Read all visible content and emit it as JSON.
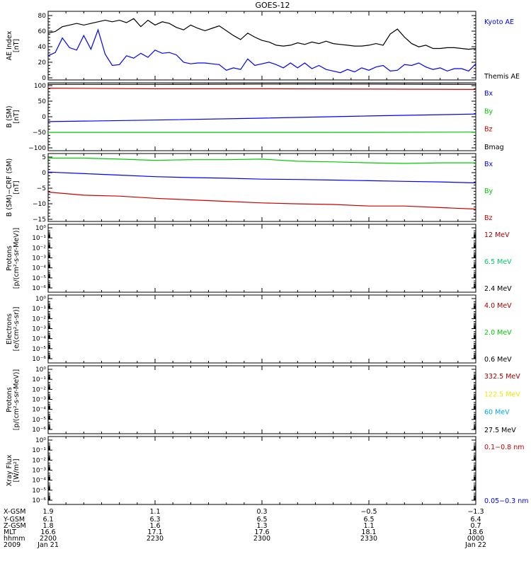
{
  "title": "GOES-12",
  "colors": {
    "black": "#000000",
    "blue": "#0000ff",
    "green": "#00cc00",
    "red": "#cc0000",
    "yellow": "#e8e800",
    "cyan": "#00aaee",
    "darkred": "#aa0000"
  },
  "panels": [
    {
      "id": "ae",
      "ylabel": [
        "AE Index",
        "[nT]"
      ],
      "ticks": [
        "80",
        "60",
        "40",
        "20",
        "0"
      ],
      "legend": [
        {
          "text": "Kyoto AE",
          "color": "#0000ff"
        },
        {
          "text": "Themis AE",
          "color": "#000000"
        }
      ]
    },
    {
      "id": "b",
      "ylabel": [
        "B (SM)",
        "[nT]"
      ],
      "ticks": [
        "100",
        "50",
        "0",
        "−50",
        "−100"
      ],
      "legend": [
        {
          "text": "Bx",
          "color": "#0000ff"
        },
        {
          "text": "By",
          "color": "#00cc00"
        },
        {
          "text": "Bz",
          "color": "#cc0000"
        },
        {
          "text": "Bmag",
          "color": "#000000"
        }
      ]
    },
    {
      "id": "bd",
      "ylabel": [
        "B (SM)−CRF (SM)",
        "[nT]"
      ],
      "ticks": [
        "5",
        "0",
        "−5",
        "−10",
        "−15"
      ],
      "legend": [
        {
          "text": "Bx",
          "color": "#0000ff"
        },
        {
          "text": "By",
          "color": "#00cc00"
        },
        {
          "text": "Bz",
          "color": "#cc0000"
        }
      ]
    },
    {
      "id": "p1",
      "ylabel": [
        "Protons",
        "[p/(cm²-s-sr-MeV)]"
      ],
      "ticks": [
        "10⁰",
        "10⁻¹",
        "10⁻²",
        "10⁻³",
        "10⁻⁴",
        "10⁻⁵",
        "10⁻⁶"
      ],
      "legend": [
        {
          "text": "12 MeV",
          "color": "#aa0000"
        },
        {
          "text": "6.5 MeV",
          "color": "#00cc66"
        },
        {
          "text": "2.4 MeV",
          "color": "#000000"
        }
      ]
    },
    {
      "id": "e1",
      "ylabel": [
        "Electrons",
        "[e/(cm²-s-sr)]"
      ],
      "ticks": [
        "10⁰",
        "10⁻¹",
        "10⁻²",
        "10⁻³",
        "10⁻⁴",
        "10⁻⁵",
        "10⁻⁶"
      ],
      "legend": [
        {
          "text": "4.0 MeV",
          "color": "#aa0000"
        },
        {
          "text": "2.0 MeV",
          "color": "#00cc00"
        },
        {
          "text": "0.6 MeV",
          "color": "#000000"
        }
      ]
    },
    {
      "id": "p2",
      "ylabel": [
        "Protons",
        "[p/(cm²-s-sr-MeV)]"
      ],
      "ticks": [
        "10⁰",
        "10⁻¹",
        "10⁻²",
        "10⁻³",
        "10⁻⁴",
        "10⁻⁵",
        "10⁻⁶"
      ],
      "legend": [
        {
          "text": "332.5 MeV",
          "color": "#aa0000"
        },
        {
          "text": "122.5 MeV",
          "color": "#e8e800"
        },
        {
          "text": "60 MeV",
          "color": "#00aaee"
        },
        {
          "text": "27.5 MeV",
          "color": "#000000"
        }
      ]
    },
    {
      "id": "x1",
      "ylabel": [
        "Xray Flux",
        "[W/m²]"
      ],
      "ticks": [
        "10⁰",
        "10⁻¹",
        "10⁻²",
        "10⁻³",
        "10⁻⁴",
        "10⁻⁵",
        "10⁻⁶"
      ],
      "legend": [
        {
          "text": "0.1−0.8 nm",
          "color": "#cc0000"
        },
        {
          "text": "0.05−0.3 nm",
          "color": "#0000ff"
        }
      ]
    }
  ],
  "footer": {
    "labels": [
      "X-GSM",
      "Y-GSM",
      "Z-GSM",
      "MLT",
      "hhmm",
      "2009"
    ],
    "columns": [
      [
        "1.9",
        "6.1",
        "1.8",
        "16.6",
        "2200",
        "Jan 21"
      ],
      [
        "1.1",
        "6.3",
        "1.6",
        "17.1",
        "2230",
        ""
      ],
      [
        "0.3",
        "6.5",
        "1.3",
        "17.6",
        "2300",
        ""
      ],
      [
        "−0.5",
        "6.5",
        "1.1",
        "18.1",
        "2330",
        ""
      ],
      [
        "−1.3",
        "6.4",
        "0.7",
        "18.6",
        "0000",
        "Jan 22"
      ]
    ]
  },
  "chart_data": [
    {
      "type": "line",
      "title": "GOES-12",
      "ylabel": "AE Index [nT]",
      "ylim": [
        0,
        85
      ],
      "x": [
        0,
        2,
        4,
        6,
        8,
        10,
        12,
        14,
        16,
        18,
        20,
        22,
        24,
        26,
        28,
        30,
        32,
        34,
        36,
        38,
        40,
        42,
        44,
        46,
        48,
        50,
        52,
        54,
        56,
        58,
        60,
        62,
        64,
        66,
        68,
        70,
        72,
        74,
        76,
        78,
        80,
        82,
        84,
        86,
        88,
        90,
        92,
        94,
        96,
        98,
        100,
        102,
        104,
        106,
        108,
        110,
        112,
        114,
        116,
        118,
        120
      ],
      "series": [
        {
          "name": "Themis AE",
          "color": "#000000",
          "values": [
            58,
            60,
            66,
            68,
            70,
            68,
            70,
            72,
            74,
            72,
            74,
            71,
            76,
            66,
            74,
            68,
            72,
            70,
            65,
            62,
            68,
            64,
            61,
            64,
            67,
            61,
            55,
            50,
            58,
            53,
            49,
            47,
            43,
            42,
            43,
            46,
            44,
            47,
            45,
            48,
            45,
            44,
            43,
            42,
            42,
            43,
            45,
            43,
            57,
            63,
            53,
            45,
            41,
            43,
            39,
            39,
            40,
            40,
            39,
            38,
            39
          ]
        },
        {
          "name": "Kyoto AE",
          "color": "#0000ff",
          "values": [
            30,
            34,
            52,
            40,
            37,
            55,
            38,
            62,
            32,
            18,
            19,
            30,
            27,
            33,
            28,
            37,
            33,
            34,
            31,
            22,
            20,
            21,
            21,
            20,
            19,
            12,
            15,
            13,
            26,
            18,
            20,
            22,
            19,
            15,
            21,
            15,
            21,
            14,
            18,
            13,
            11,
            9,
            13,
            10,
            15,
            12,
            16,
            18,
            11,
            12,
            19,
            18,
            21,
            16,
            13,
            15,
            11,
            14,
            14,
            11,
            20
          ]
        }
      ]
    },
    {
      "type": "line",
      "ylabel": "B (SM) [nT]",
      "ylim": [
        -110,
        105
      ],
      "x": [
        0,
        30,
        60,
        90,
        120
      ],
      "series": [
        {
          "name": "Bx",
          "color": "#0000ff",
          "values": [
            -18,
            -13,
            -7,
            0,
            6
          ]
        },
        {
          "name": "By",
          "color": "#00cc00",
          "values": [
            -52,
            -52,
            -52,
            -52,
            -51
          ]
        },
        {
          "name": "Bz",
          "color": "#cc0000",
          "values": [
            88,
            86,
            86,
            85,
            84
          ]
        },
        {
          "name": "Bmag",
          "color": "#000000",
          "values": [
            100,
            100,
            101,
            101,
            100
          ]
        }
      ]
    },
    {
      "type": "line",
      "ylabel": "B (SM)−CRF (SM) [nT]",
      "ylim": [
        -16,
        6
      ],
      "x": [
        0,
        10,
        20,
        30,
        40,
        50,
        60,
        70,
        80,
        90,
        100,
        110,
        120
      ],
      "series": [
        {
          "name": "Bx",
          "color": "#0000ff",
          "values": [
            0,
            -0.5,
            -1,
            -1.5,
            -1.8,
            -2,
            -2.3,
            -2.4,
            -2.6,
            -2.8,
            -3,
            -3.2,
            -3.5
          ]
        },
        {
          "name": "By",
          "color": "#00cc00",
          "values": [
            4.5,
            4.5,
            4.2,
            3.8,
            4,
            4,
            4.2,
            3.5,
            3.3,
            3,
            2.8,
            3,
            3
          ]
        },
        {
          "name": "Bz",
          "color": "#cc0000",
          "values": [
            -6.5,
            -7.5,
            -7.8,
            -8.5,
            -9,
            -9.5,
            -10,
            -10.3,
            -10.5,
            -11,
            -11,
            -11.5,
            -12
          ]
        }
      ]
    }
  ]
}
